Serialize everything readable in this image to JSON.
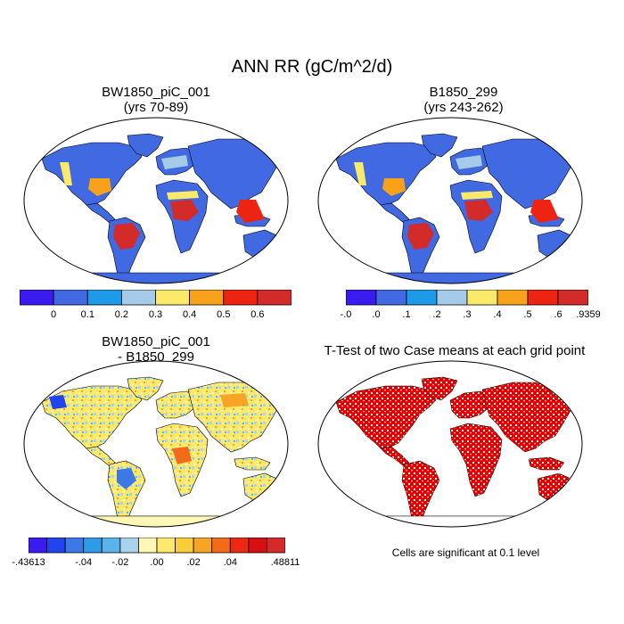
{
  "title": "ANN RR (gC/m^2/d)",
  "panels": [
    {
      "id": "case1",
      "title_line1": "BW1850_piC_001",
      "title_line2": "(yrs 70-89)"
    },
    {
      "id": "case2",
      "title_line1": "B1850_299",
      "title_line2": "(yrs 243-262)"
    },
    {
      "id": "diff",
      "title_line1": "BW1850_piC_001",
      "title_line2": "- B1850_299"
    },
    {
      "id": "ttest",
      "title_line1": "T-Test of two Case means at each grid point",
      "title_line2": ""
    }
  ],
  "colorbar1": {
    "colors": [
      "#3b1cf0",
      "#4169e1",
      "#1e9be8",
      "#a6cbe8",
      "#fbe96a",
      "#f7a21a",
      "#ee2412",
      "#d32a2a"
    ],
    "labels": [
      "0",
      "0.1",
      "0.2",
      "0.3",
      "0.4",
      "0.5",
      "0.6"
    ]
  },
  "colorbar2": {
    "colors": [
      "#3b1cf0",
      "#4169e1",
      "#1e9be8",
      "#a6cbe8",
      "#fbe96a",
      "#f7a21a",
      "#ee2412",
      "#d32a2a"
    ],
    "labels": [
      "-.0",
      ".0",
      ".1",
      ".2",
      ".3",
      ".4",
      ".5",
      ".6",
      ".9359"
    ]
  },
  "colorbar3": {
    "colors": [
      "#3b1cf0",
      "#2244ee",
      "#3c78e6",
      "#2f9ae6",
      "#5ab4ea",
      "#a9d2ec",
      "#fff7b5",
      "#fde96e",
      "#fbcc3a",
      "#f8a525",
      "#f36a18",
      "#ec2a14",
      "#d80f0f",
      "#d42a2a"
    ],
    "labels": [
      "-.43613",
      "-.04",
      "-.02",
      ".00",
      ".02",
      ".04",
      ".48811"
    ]
  },
  "significance_note": "Cells are significant at 0.1 level"
}
